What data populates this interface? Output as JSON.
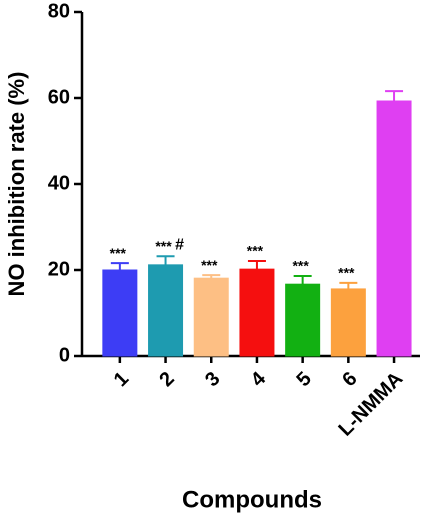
{
  "chart_data": {
    "type": "bar",
    "x_label": "Compounds",
    "y_label": "NO inhibition rate (%)",
    "categories": [
      "1",
      "2",
      "3",
      "4",
      "5",
      "6",
      "L-NMMA"
    ],
    "values": [
      20.0,
      21.2,
      18.1,
      20.2,
      16.7,
      15.6,
      59.3
    ],
    "errors": [
      1.6,
      2.0,
      0.7,
      1.9,
      1.9,
      1.4,
      2.3
    ],
    "colors": [
      "#3d3df5",
      "#1e9bb0",
      "#fdbf84",
      "#f50f0f",
      "#12b012",
      "#fca13e",
      "#df3ff2"
    ],
    "annotations": [
      {
        "category": 0,
        "text": "***"
      },
      {
        "category": 1,
        "text": "***"
      },
      {
        "category": 1,
        "text": "#"
      },
      {
        "category": 2,
        "text": "***"
      },
      {
        "category": 3,
        "text": "***"
      },
      {
        "category": 4,
        "text": "***"
      },
      {
        "category": 5,
        "text": "***"
      }
    ],
    "ylim": [
      0,
      80
    ],
    "yticks": [
      0,
      20,
      40,
      60,
      80
    ],
    "grid": false
  }
}
